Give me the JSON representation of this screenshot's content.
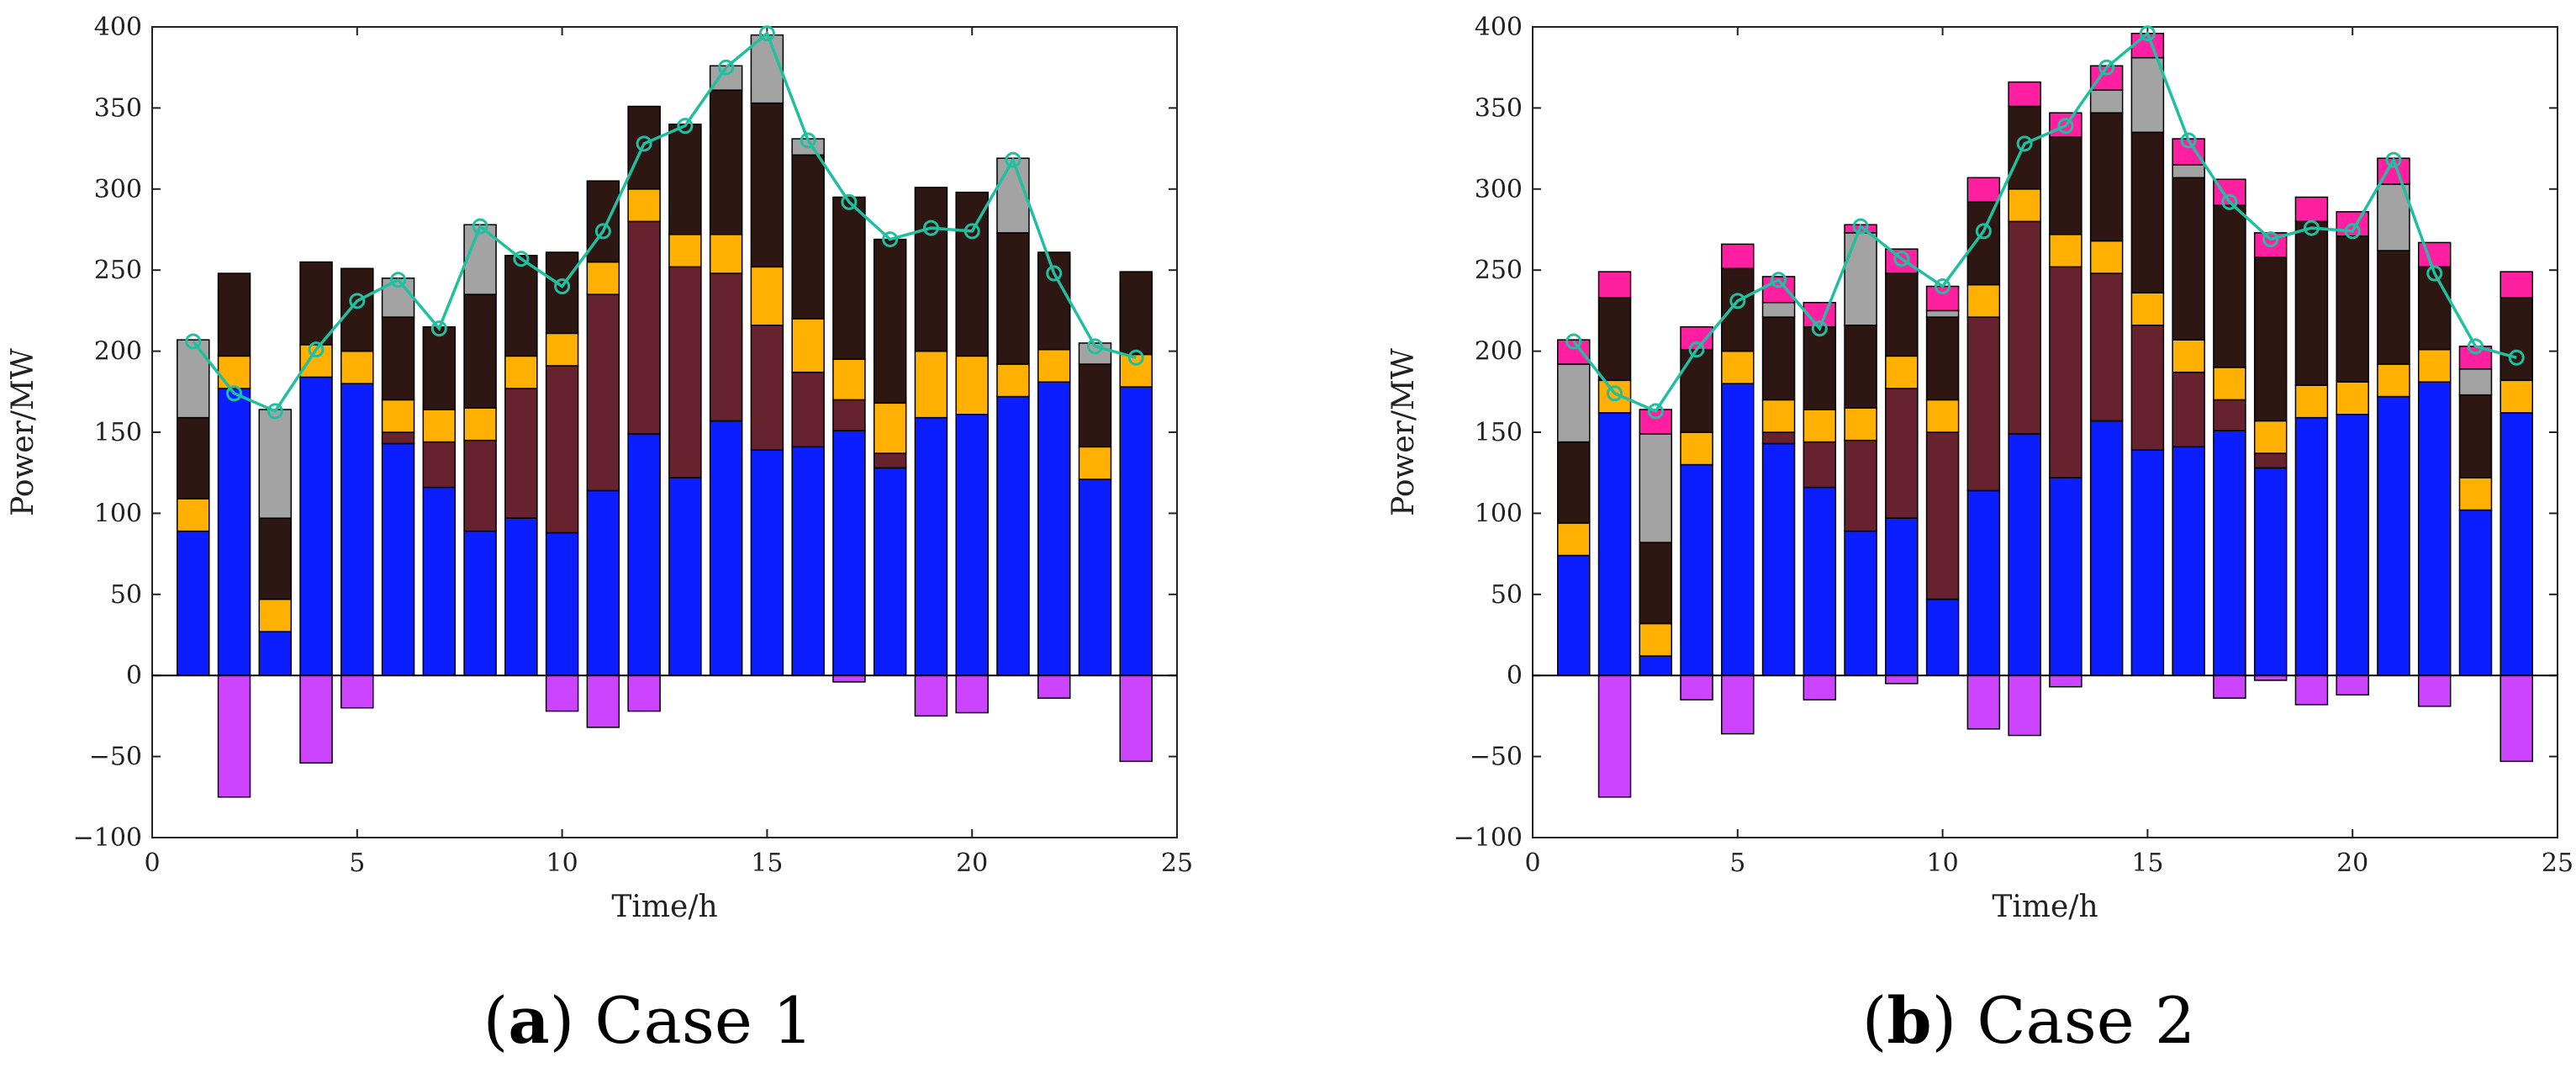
{
  "chart_data": [
    {
      "type": "bar",
      "caption_letter": "a",
      "caption_text": "Case 1",
      "xlabel": "Time/h",
      "ylabel": "Power/MW",
      "xlim": [
        0,
        25
      ],
      "ylim": [
        -100,
        400
      ],
      "xticks": [
        0,
        5,
        10,
        15,
        20,
        25
      ],
      "yticks": [
        -100,
        -50,
        0,
        50,
        100,
        150,
        200,
        250,
        300,
        350,
        400
      ],
      "ytick_labels": [
        "−100",
        "−50",
        "0",
        "50",
        "100",
        "150",
        "200",
        "250",
        "300",
        "350",
        "400"
      ],
      "hours": [
        1,
        2,
        3,
        4,
        5,
        6,
        7,
        8,
        9,
        10,
        11,
        12,
        13,
        14,
        15,
        16,
        17,
        18,
        19,
        20,
        21,
        22,
        23,
        24
      ],
      "stacked_series": [
        {
          "name": "blue",
          "color": "#0a1eff",
          "values": [
            89,
            177,
            27,
            184,
            180,
            143,
            116,
            89,
            97,
            88,
            114,
            149,
            122,
            157,
            139,
            141,
            151,
            128,
            159,
            161,
            172,
            181,
            121,
            178
          ]
        },
        {
          "name": "darkred",
          "color": "#66222e",
          "values": [
            0,
            0,
            0,
            0,
            0,
            7,
            28,
            56,
            80,
            103,
            121,
            131,
            130,
            91,
            77,
            46,
            19,
            9,
            0,
            0,
            0,
            0,
            0,
            0
          ]
        },
        {
          "name": "orange",
          "color": "#ffb000",
          "values": [
            20,
            20,
            20,
            20,
            20,
            20,
            20,
            20,
            20,
            20,
            20,
            20,
            20,
            24,
            36,
            33,
            25,
            31,
            41,
            36,
            20,
            20,
            20,
            20
          ]
        },
        {
          "name": "darkbrown",
          "color": "#2e1612",
          "values": [
            50,
            51,
            50,
            51,
            51,
            51,
            51,
            70,
            62,
            50,
            50,
            51,
            68,
            89,
            101,
            101,
            100,
            101,
            101,
            101,
            81,
            60,
            51,
            51
          ]
        },
        {
          "name": "gray",
          "color": "#a3a3a3",
          "values": [
            48,
            0,
            67,
            0,
            0,
            24,
            0,
            43,
            0,
            0,
            0,
            0,
            0,
            15,
            42,
            10,
            0,
            0,
            0,
            0,
            46,
            0,
            13,
            0
          ]
        }
      ],
      "negative_series": {
        "name": "magenta",
        "color": "#cc44ff",
        "values": [
          0,
          -75,
          0,
          -54,
          -20,
          0,
          0,
          0,
          0,
          -22,
          -32,
          -22,
          0,
          0,
          0,
          0,
          -4,
          0,
          -25,
          -23,
          0,
          -14,
          0,
          -53
        ]
      },
      "line_series": {
        "name": "load",
        "color": "#1fbfa0",
        "values": [
          206,
          174,
          163,
          201,
          231,
          244,
          214,
          277,
          257,
          240,
          274,
          328,
          339,
          375,
          396,
          330,
          292,
          269,
          276,
          274,
          318,
          248,
          203,
          196
        ]
      }
    },
    {
      "type": "bar",
      "caption_letter": "b",
      "caption_text": "Case 2",
      "xlabel": "Time/h",
      "ylabel": "Power/MW",
      "xlim": [
        0,
        25
      ],
      "ylim": [
        -100,
        400
      ],
      "xticks": [
        0,
        5,
        10,
        15,
        20,
        25
      ],
      "yticks": [
        -100,
        -50,
        0,
        50,
        100,
        150,
        200,
        250,
        300,
        350,
        400
      ],
      "ytick_labels": [
        "−100",
        "−50",
        "0",
        "50",
        "100",
        "150",
        "200",
        "250",
        "300",
        "350",
        "400"
      ],
      "hours": [
        1,
        2,
        3,
        4,
        5,
        6,
        7,
        8,
        9,
        10,
        11,
        12,
        13,
        14,
        15,
        16,
        17,
        18,
        19,
        20,
        21,
        22,
        23,
        24
      ],
      "stacked_series": [
        {
          "name": "blue",
          "color": "#0a1eff",
          "values": [
            74,
            162,
            12,
            130,
            180,
            143,
            116,
            89,
            97,
            47,
            114,
            149,
            122,
            157,
            139,
            141,
            151,
            128,
            159,
            161,
            172,
            181,
            102,
            162
          ]
        },
        {
          "name": "darkred",
          "color": "#66222e",
          "values": [
            0,
            0,
            0,
            0,
            0,
            7,
            28,
            56,
            80,
            103,
            107,
            131,
            130,
            91,
            77,
            46,
            19,
            9,
            0,
            0,
            0,
            0,
            0,
            0
          ]
        },
        {
          "name": "orange",
          "color": "#ffb000",
          "values": [
            20,
            20,
            20,
            20,
            20,
            20,
            20,
            20,
            20,
            20,
            20,
            20,
            20,
            20,
            20,
            20,
            20,
            20,
            20,
            20,
            20,
            20,
            20,
            20
          ]
        },
        {
          "name": "darkbrown",
          "color": "#2e1612",
          "values": [
            50,
            51,
            50,
            51,
            51,
            51,
            51,
            51,
            51,
            51,
            51,
            51,
            60,
            79,
            99,
            100,
            100,
            101,
            101,
            90,
            70,
            51,
            51,
            51
          ]
        },
        {
          "name": "gray",
          "color": "#a3a3a3",
          "values": [
            48,
            0,
            67,
            0,
            0,
            9,
            0,
            57,
            0,
            4,
            0,
            0,
            0,
            14,
            46,
            8,
            0,
            0,
            0,
            0,
            41,
            0,
            16,
            0
          ]
        },
        {
          "name": "hotpink",
          "color": "#ff1fa0",
          "values": [
            15,
            16,
            15,
            14,
            15,
            16,
            15,
            5,
            15,
            15,
            15,
            15,
            15,
            15,
            15,
            16,
            16,
            15,
            15,
            15,
            16,
            15,
            14,
            16
          ]
        }
      ],
      "negative_series": {
        "name": "magenta",
        "color": "#cc44ff",
        "values": [
          0,
          -75,
          0,
          -15,
          -36,
          0,
          -15,
          0,
          -5,
          0,
          -33,
          -37,
          -7,
          0,
          0,
          0,
          -14,
          -3,
          -18,
          -12,
          0,
          -19,
          0,
          -53
        ]
      },
      "line_series": {
        "name": "load",
        "color": "#1fbfa0",
        "values": [
          206,
          174,
          163,
          201,
          231,
          244,
          214,
          277,
          257,
          240,
          274,
          328,
          339,
          375,
          396,
          330,
          292,
          269,
          276,
          274,
          318,
          248,
          203,
          196
        ]
      }
    }
  ]
}
